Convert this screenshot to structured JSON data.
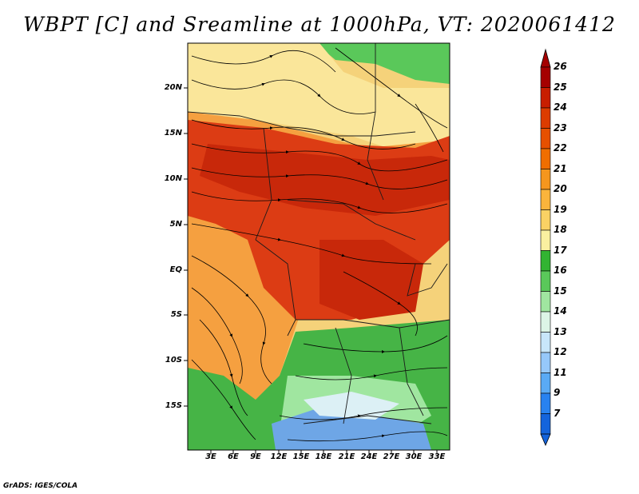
{
  "title": "WBPT [C] and Sreamline at 1000hPa, VT: 2020061412",
  "credit": "GrADS: IGES/COLA",
  "lat_ticks": [
    "20N",
    "15N",
    "10N",
    "5N",
    "EQ",
    "5S",
    "10S",
    "15S"
  ],
  "lon_ticks": [
    "3E",
    "6E",
    "9E",
    "12E",
    "15E",
    "18E",
    "21E",
    "24E",
    "27E",
    "30E",
    "33E"
  ],
  "colorbar": {
    "labels": [
      "26",
      "25",
      "24",
      "23",
      "22",
      "21",
      "20",
      "19",
      "18",
      "17",
      "16",
      "15",
      "14",
      "13",
      "12",
      "11",
      "9",
      "7"
    ],
    "colors": [
      "#a50000",
      "#c81e00",
      "#dc3c00",
      "#e65000",
      "#f06e00",
      "#f5961e",
      "#fab43c",
      "#fad264",
      "#faf0a0",
      "#32b432",
      "#5ac85a",
      "#a0e6a0",
      "#dcf5e6",
      "#c8e6fa",
      "#96c8fa",
      "#5aaaf5",
      "#2882f0",
      "#1464dc"
    ]
  },
  "map_regions": [
    {
      "name": "north-green",
      "color": "#5ac85a"
    },
    {
      "name": "sahel-yellow",
      "color": "#f5d27a"
    },
    {
      "name": "west-orange",
      "color": "#f5a040"
    },
    {
      "name": "core-red",
      "color": "#dc3c14"
    },
    {
      "name": "south-green",
      "color": "#46b446"
    },
    {
      "name": "southern-blue",
      "color": "#6ea6e6"
    }
  ]
}
